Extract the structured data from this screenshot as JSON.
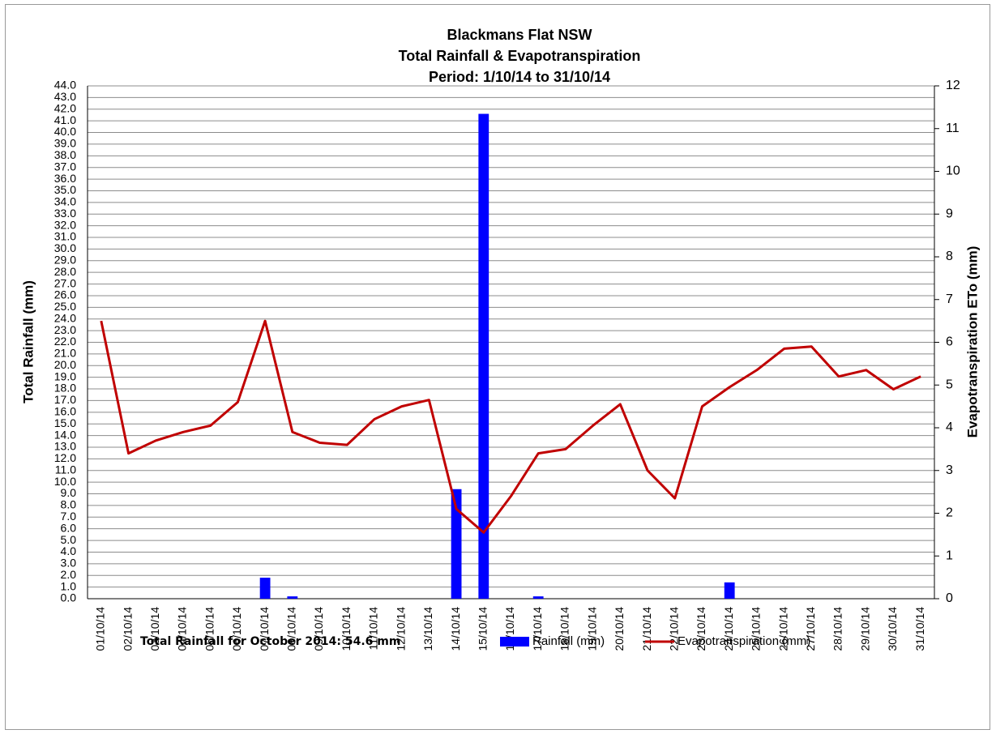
{
  "chart_data": {
    "type": "combo",
    "title": [
      "Blackmans Flat NSW",
      "Total Rainfall & Evapotranspiration",
      "Period: 1/10/14 to 31/10/14"
    ],
    "y_label": "Total Rainfall (mm)",
    "y2_label": "Evapotranspiration ETo (mm)",
    "annotation": "Total Rainfall for October 2014: 54.6 mm",
    "categories": [
      "01/10/14",
      "02/10/14",
      "03/10/14",
      "04/10/14",
      "05/10/14",
      "06/10/14",
      "07/10/14",
      "08/10/14",
      "09/10/14",
      "10/10/14",
      "11/10/14",
      "12/10/14",
      "13/10/14",
      "14/10/14",
      "15/10/14",
      "16/10/14",
      "17/10/14",
      "18/10/14",
      "19/10/14",
      "20/10/14",
      "21/10/14",
      "22/10/14",
      "23/10/14",
      "24/10/14",
      "25/10/14",
      "26/10/14",
      "27/10/14",
      "28/10/14",
      "29/10/14",
      "30/10/14",
      "31/10/14"
    ],
    "series": [
      {
        "name": "Rainfall (mm)",
        "type": "bar",
        "color": "#0000ff",
        "values": [
          0,
          0,
          0,
          0,
          0,
          0,
          1.8,
          0.2,
          0,
          0,
          0,
          0,
          0,
          9.4,
          41.6,
          0,
          0.2,
          0,
          0,
          0,
          0,
          0,
          0,
          1.4,
          0,
          0,
          0,
          0,
          0,
          0,
          0
        ]
      },
      {
        "name": "Evapotranspiration (mm)",
        "type": "line",
        "axis": "y2",
        "color": "#c00000",
        "values": [
          6.5,
          3.4,
          3.7,
          3.9,
          4.05,
          4.6,
          6.5,
          3.9,
          3.65,
          3.6,
          4.2,
          4.5,
          4.65,
          2.1,
          1.55,
          2.4,
          3.4,
          3.5,
          4.05,
          4.55,
          3.0,
          2.35,
          4.5,
          4.95,
          5.35,
          5.85,
          5.9,
          5.2,
          5.35,
          4.9,
          5.2
        ]
      }
    ],
    "ylim": [
      0,
      44
    ],
    "yticks": [
      {
        "value": 0,
        "label": "0.0"
      },
      {
        "value": 1,
        "label": "1.0"
      },
      {
        "value": 2,
        "label": "2.0"
      },
      {
        "value": 3,
        "label": "3.0"
      },
      {
        "value": 4,
        "label": "4.0"
      },
      {
        "value": 5,
        "label": "5.0"
      },
      {
        "value": 6,
        "label": "6.0"
      },
      {
        "value": 7,
        "label": "7.0"
      },
      {
        "value": 8,
        "label": "8.0"
      },
      {
        "value": 9,
        "label": "9.0"
      },
      {
        "value": 10,
        "label": "10.0"
      },
      {
        "value": 11,
        "label": "11.0"
      },
      {
        "value": 12,
        "label": "12.0"
      },
      {
        "value": 13,
        "label": "13.0"
      },
      {
        "value": 14,
        "label": "14.0"
      },
      {
        "value": 15,
        "label": "15.0"
      },
      {
        "value": 16,
        "label": "16.0"
      },
      {
        "value": 17,
        "label": "17.0"
      },
      {
        "value": 18,
        "label": "18.0"
      },
      {
        "value": 19,
        "label": "19.0"
      },
      {
        "value": 20,
        "label": "20.0"
      },
      {
        "value": 21,
        "label": "21.0"
      },
      {
        "value": 22,
        "label": "22.0"
      },
      {
        "value": 23,
        "label": "23.0"
      },
      {
        "value": 24,
        "label": "24.0"
      },
      {
        "value": 25,
        "label": "25.0"
      },
      {
        "value": 26,
        "label": "26.0"
      },
      {
        "value": 27,
        "label": "27.0"
      },
      {
        "value": 28,
        "label": "28.0"
      },
      {
        "value": 29,
        "label": "29.0"
      },
      {
        "value": 30,
        "label": "30.0"
      },
      {
        "value": 31,
        "label": "31.0"
      },
      {
        "value": 32,
        "label": "32.0"
      },
      {
        "value": 33,
        "label": "33.0"
      },
      {
        "value": 34,
        "label": "34.0"
      },
      {
        "value": 35,
        "label": "35.0"
      },
      {
        "value": 36,
        "label": "36.0"
      },
      {
        "value": 37,
        "label": "37.0"
      },
      {
        "value": 38,
        "label": "38.0"
      },
      {
        "value": 39,
        "label": "39.0"
      },
      {
        "value": 40,
        "label": "40.0"
      },
      {
        "value": 41,
        "label": "41.0"
      },
      {
        "value": 42,
        "label": "42.0"
      },
      {
        "value": 43,
        "label": "43.0"
      },
      {
        "value": 44,
        "label": "44.0"
      }
    ],
    "y2lim": [
      0,
      12
    ],
    "y2ticks": [
      0,
      1,
      2,
      3,
      4,
      5,
      6,
      7,
      8,
      9,
      10,
      11,
      12
    ],
    "grid": true
  }
}
